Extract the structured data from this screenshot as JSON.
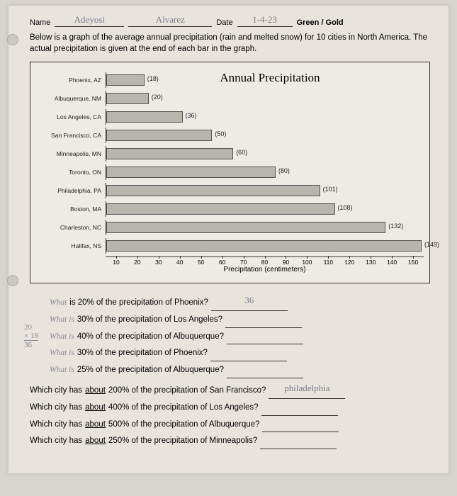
{
  "header": {
    "name_label": "Name",
    "name_value": "Adeyosi",
    "name_value2": "Alvarez",
    "date_label": "Date",
    "date_value": "1-4-23",
    "class_label": "Green / Gold"
  },
  "intro": "Below is a graph of the average annual precipitation (rain and melted snow) for 10 cities in North America. The actual precipitation is given at the end of each bar in the graph.",
  "chart": {
    "title": "Annual Precipitation",
    "x_label": "Precipitation (centimeters)",
    "x_max": 150,
    "ticks": [
      "10",
      "20",
      "30",
      "40",
      "50",
      "60",
      "70",
      "80",
      "90",
      "100",
      "110",
      "120",
      "130",
      "140",
      "150"
    ],
    "bar_color": "#b8b5ad",
    "bars": [
      {
        "city": "Phoenix, AZ",
        "value": 18
      },
      {
        "city": "Albuquerque, NM",
        "value": 20
      },
      {
        "city": "Los Angeles, CA",
        "value": 36
      },
      {
        "city": "San Francisco, CA",
        "value": 50
      },
      {
        "city": "Minneapolis, MN",
        "value": 60
      },
      {
        "city": "Toronto, ON",
        "value": 80
      },
      {
        "city": "Philadelphia, PA",
        "value": 101
      },
      {
        "city": "Boston, MA",
        "value": 108
      },
      {
        "city": "Charleston, NC",
        "value": 132
      },
      {
        "city": "Halifax, NS",
        "value": 149
      }
    ]
  },
  "side_work": {
    "line1": "20",
    "line2": "× 18",
    "line3": "36"
  },
  "questions": [
    {
      "prefix_hand": "What",
      "text": " is 20% of the precipitation of Phoenix?",
      "answer": "36",
      "indent": true
    },
    {
      "prefix_hand": "What is",
      "text": " 30% of the precipitation of Los Angeles?",
      "answer": "",
      "indent": true
    },
    {
      "prefix_hand": "What is",
      "text": " 40% of the precipitation of Albuquerque?",
      "answer": "",
      "indent": true
    },
    {
      "prefix_hand": "What is",
      "text": " 30% of the precipitation of Phoenix?",
      "answer": "",
      "indent": true
    },
    {
      "prefix_hand": "What is",
      "text": " 25% of the precipitation of Albuquerque?",
      "answer": "",
      "indent": true
    },
    {
      "prefix_hand": "",
      "text": "Which city has about 200% of the precipitation of San Francisco?",
      "answer": "philadelphia",
      "indent": false
    },
    {
      "prefix_hand": "",
      "text": "Which city has about 400% of the precipitation of Los Angeles?",
      "answer": "",
      "indent": false
    },
    {
      "prefix_hand": "",
      "text": "Which city has about 500% of the precipitation of Albuquerque?",
      "answer": "",
      "indent": false
    },
    {
      "prefix_hand": "",
      "text": "Which city has about 250% of the precipitation of Minneapolis?",
      "answer": "",
      "indent": false
    }
  ]
}
